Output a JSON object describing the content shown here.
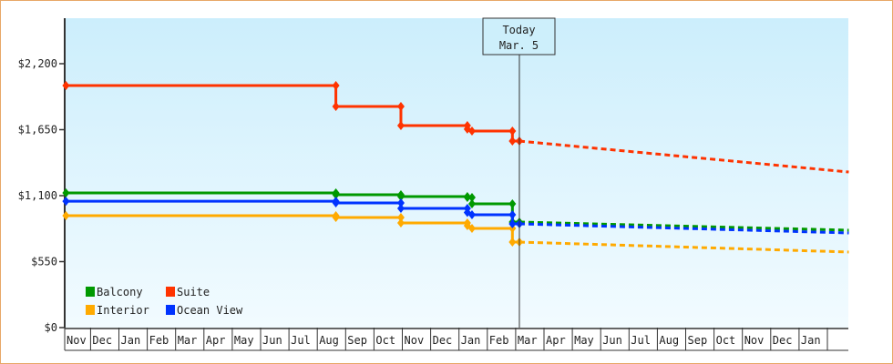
{
  "chart_data": {
    "type": "line",
    "title": "",
    "xlabel": "",
    "ylabel": "",
    "x_ticks": [
      "Nov",
      "Dec",
      "Jan",
      "Feb",
      "Mar",
      "Apr",
      "May",
      "Jun",
      "Jul",
      "Aug",
      "Sep",
      "Oct",
      "Nov",
      "Dec",
      "Jan",
      "Feb",
      "Mar",
      "Apr",
      "May",
      "Jun",
      "Jul",
      "Aug",
      "Sep",
      "Oct",
      "Nov",
      "Dec",
      "Jan"
    ],
    "x_format": "[tick index, day of month]",
    "y_ticks": [
      0,
      550,
      1100,
      1650,
      2200
    ],
    "y_tick_labels": [
      "$0",
      "$550",
      "$1,100",
      "$1,650",
      "$2,200"
    ],
    "ylim": [
      0,
      2580
    ],
    "grid": false,
    "legend_position": "bottom-left",
    "today": {
      "label_line1": "Today",
      "label_line2": "Mar. 5",
      "x": [
        16,
        5
      ]
    },
    "series": [
      {
        "name": "Balcony",
        "color": "#009900",
        "points": [
          [
            [
              0,
              5
            ],
            1123
          ],
          [
            [
              9,
              21
            ],
            1123
          ],
          [
            [
              9,
              21
            ],
            1108
          ],
          [
            [
              11,
              30
            ],
            1108
          ],
          [
            [
              11,
              30
            ],
            1092
          ],
          [
            [
              14,
              10
            ],
            1092
          ],
          [
            [
              14,
              10
            ],
            1085
          ],
          [
            [
              14,
              15
            ],
            1085
          ],
          [
            [
              14,
              15
            ],
            1032
          ],
          [
            [
              15,
              28
            ],
            1032
          ],
          [
            [
              15,
              28
            ],
            880
          ],
          [
            [
              16,
              5
            ],
            880
          ]
        ],
        "forecast": [
          [
            [
              16,
              5
            ],
            880
          ],
          [
            [
              27,
              24
            ],
            812
          ]
        ]
      },
      {
        "name": "Suite",
        "color": "#ff3300",
        "points": [
          [
            [
              0,
              5
            ],
            2018
          ],
          [
            [
              9,
              21
            ],
            2018
          ],
          [
            [
              9,
              21
            ],
            1843
          ],
          [
            [
              11,
              30
            ],
            1843
          ],
          [
            [
              11,
              30
            ],
            1684
          ],
          [
            [
              14,
              10
            ],
            1684
          ],
          [
            [
              14,
              10
            ],
            1655
          ],
          [
            [
              14,
              15
            ],
            1639
          ],
          [
            [
              15,
              28
            ],
            1639
          ],
          [
            [
              15,
              28
            ],
            1555
          ],
          [
            [
              16,
              5
            ],
            1555
          ]
        ],
        "forecast": [
          [
            [
              16,
              5
            ],
            1555
          ],
          [
            [
              27,
              24
            ],
            1297
          ]
        ]
      },
      {
        "name": "Interior",
        "color": "#ffaa00",
        "points": [
          [
            [
              0,
              5
            ],
            933
          ],
          [
            [
              9,
              21
            ],
            933
          ],
          [
            [
              9,
              21
            ],
            918
          ],
          [
            [
              11,
              30
            ],
            918
          ],
          [
            [
              11,
              30
            ],
            872
          ],
          [
            [
              14,
              10
            ],
            872
          ],
          [
            [
              14,
              10
            ],
            850
          ],
          [
            [
              14,
              15
            ],
            827
          ],
          [
            [
              15,
              28
            ],
            827
          ],
          [
            [
              15,
              28
            ],
            713
          ],
          [
            [
              16,
              5
            ],
            713
          ]
        ],
        "forecast": [
          [
            [
              16,
              5
            ],
            713
          ],
          [
            [
              27,
              24
            ],
            630
          ]
        ]
      },
      {
        "name": "Ocean View",
        "color": "#0033ff",
        "points": [
          [
            [
              0,
              5
            ],
            1054
          ],
          [
            [
              9,
              21
            ],
            1054
          ],
          [
            [
              9,
              21
            ],
            1039
          ],
          [
            [
              11,
              30
            ],
            1039
          ],
          [
            [
              11,
              30
            ],
            994
          ],
          [
            [
              14,
              10
            ],
            994
          ],
          [
            [
              14,
              10
            ],
            960
          ],
          [
            [
              14,
              15
            ],
            941
          ],
          [
            [
              15,
              28
            ],
            941
          ],
          [
            [
              15,
              28
            ],
            865
          ],
          [
            [
              16,
              5
            ],
            865
          ]
        ],
        "forecast": [
          [
            [
              16,
              5
            ],
            865
          ],
          [
            [
              27,
              24
            ],
            789
          ]
        ]
      }
    ]
  }
}
